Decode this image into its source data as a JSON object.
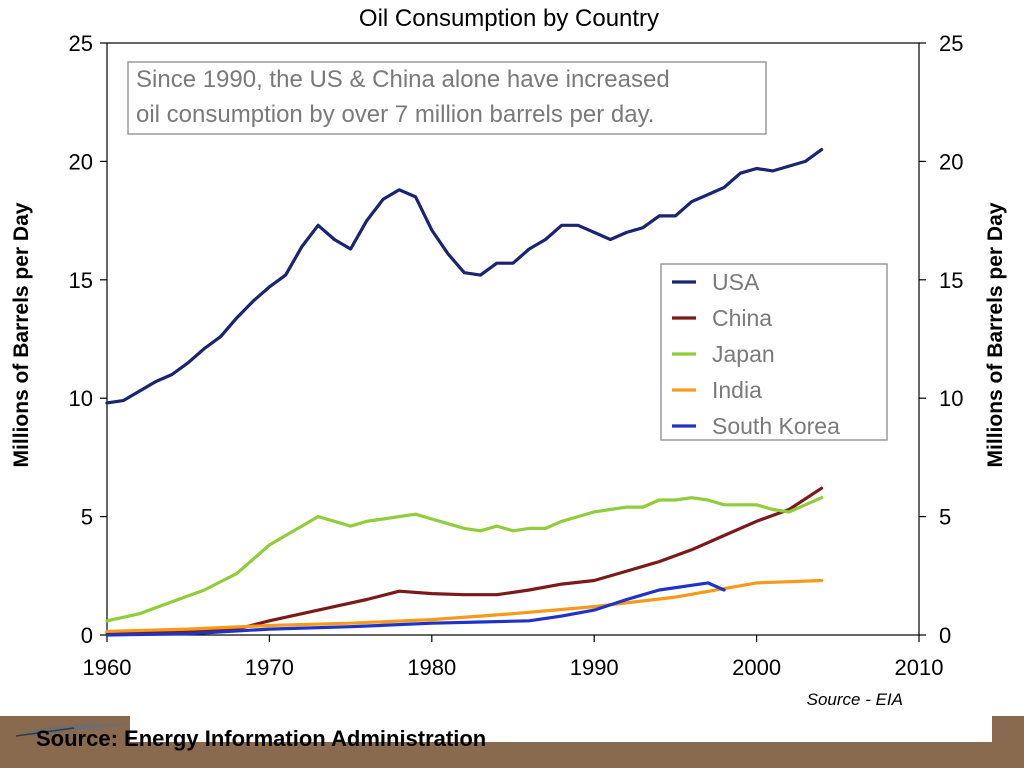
{
  "footer": {
    "caption": "Source: Energy Information Administration"
  },
  "chart_data": {
    "type": "line",
    "title": "Oil Consumption by Country",
    "ylabel": "Millions of Barrels per Day",
    "ylabel_right": "Millions of Barrels per Day",
    "xlabel": "",
    "xlim": [
      1960,
      2010
    ],
    "ylim": [
      0,
      25
    ],
    "x_ticks": [
      1960,
      1970,
      1980,
      1990,
      2000,
      2010
    ],
    "y_ticks": [
      0,
      5,
      10,
      15,
      20,
      25
    ],
    "grid": false,
    "legend_position": "right-middle",
    "annotation": [
      "Since 1990, the US & China alone have increased",
      "oil consumption by over 7 million barrels per day."
    ],
    "source_note": "Source - EIA",
    "series": [
      {
        "name": "USA",
        "color": "#1a2470",
        "x": [
          1960,
          1961,
          1962,
          1963,
          1964,
          1965,
          1966,
          1967,
          1968,
          1969,
          1970,
          1971,
          1972,
          1973,
          1974,
          1975,
          1976,
          1977,
          1978,
          1979,
          1980,
          1981,
          1982,
          1983,
          1984,
          1985,
          1986,
          1987,
          1988,
          1989,
          1990,
          1991,
          1992,
          1993,
          1994,
          1995,
          1996,
          1997,
          1998,
          1999,
          2000,
          2001,
          2002,
          2003,
          2004
        ],
        "values": [
          9.8,
          9.9,
          10.3,
          10.7,
          11.0,
          11.5,
          12.1,
          12.6,
          13.4,
          14.1,
          14.7,
          15.2,
          16.4,
          17.3,
          16.7,
          16.3,
          17.5,
          18.4,
          18.8,
          18.5,
          17.1,
          16.1,
          15.3,
          15.2,
          15.7,
          15.7,
          16.3,
          16.7,
          17.3,
          17.3,
          17.0,
          16.7,
          17.0,
          17.2,
          17.7,
          17.7,
          18.3,
          18.6,
          18.9,
          19.5,
          19.7,
          19.6,
          19.8,
          20.0,
          20.5
        ]
      },
      {
        "name": "China",
        "color": "#7a1a1a",
        "x": [
          1960,
          1962,
          1964,
          1966,
          1968,
          1970,
          1972,
          1974,
          1976,
          1978,
          1980,
          1982,
          1984,
          1986,
          1988,
          1990,
          1992,
          1994,
          1996,
          1998,
          2000,
          2002,
          2004
        ],
        "values": [
          0.1,
          0.1,
          0.1,
          0.15,
          0.25,
          0.6,
          0.9,
          1.2,
          1.5,
          1.85,
          1.75,
          1.7,
          1.7,
          1.9,
          2.15,
          2.3,
          2.7,
          3.1,
          3.6,
          4.2,
          4.8,
          5.3,
          6.2
        ]
      },
      {
        "name": "Japan",
        "color": "#8fcd3a",
        "x": [
          1960,
          1962,
          1964,
          1966,
          1968,
          1970,
          1971,
          1972,
          1973,
          1974,
          1975,
          1976,
          1977,
          1978,
          1979,
          1980,
          1981,
          1982,
          1983,
          1984,
          1985,
          1986,
          1987,
          1988,
          1989,
          1990,
          1991,
          1992,
          1993,
          1994,
          1995,
          1996,
          1997,
          1998,
          1999,
          2000,
          2001,
          2002,
          2003,
          2004
        ],
        "values": [
          0.6,
          0.9,
          1.4,
          1.9,
          2.6,
          3.8,
          4.2,
          4.6,
          5.0,
          4.8,
          4.6,
          4.8,
          4.9,
          5.0,
          5.1,
          4.9,
          4.7,
          4.5,
          4.4,
          4.6,
          4.4,
          4.5,
          4.5,
          4.8,
          5.0,
          5.2,
          5.3,
          5.4,
          5.4,
          5.7,
          5.7,
          5.8,
          5.7,
          5.5,
          5.5,
          5.5,
          5.3,
          5.2,
          5.5,
          5.8
        ]
      },
      {
        "name": "India",
        "color": "#f59a1a",
        "x": [
          1960,
          1965,
          1970,
          1975,
          1980,
          1985,
          1990,
          1995,
          2000,
          2004
        ],
        "values": [
          0.15,
          0.25,
          0.4,
          0.5,
          0.65,
          0.9,
          1.2,
          1.6,
          2.2,
          2.3
        ]
      },
      {
        "name": "South Korea",
        "color": "#2033c8",
        "x": [
          1960,
          1965,
          1970,
          1975,
          1980,
          1983,
          1986,
          1988,
          1990,
          1992,
          1994,
          1996,
          1997,
          1998
        ],
        "values": [
          0.0,
          0.05,
          0.25,
          0.35,
          0.5,
          0.55,
          0.6,
          0.8,
          1.05,
          1.5,
          1.9,
          2.1,
          2.2,
          1.9
        ]
      }
    ]
  }
}
